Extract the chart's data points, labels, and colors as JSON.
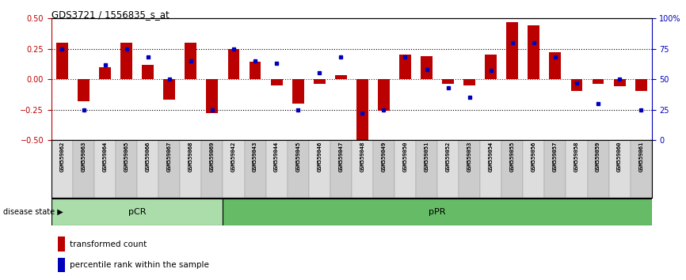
{
  "title": "GDS3721 / 1556835_s_at",
  "samples": [
    "GSM559062",
    "GSM559063",
    "GSM559064",
    "GSM559065",
    "GSM559066",
    "GSM559067",
    "GSM559068",
    "GSM559069",
    "GSM559042",
    "GSM559043",
    "GSM559044",
    "GSM559045",
    "GSM559046",
    "GSM559047",
    "GSM559048",
    "GSM559049",
    "GSM559050",
    "GSM559051",
    "GSM559052",
    "GSM559053",
    "GSM559054",
    "GSM559055",
    "GSM559056",
    "GSM559057",
    "GSM559058",
    "GSM559059",
    "GSM559060",
    "GSM559061"
  ],
  "red_values": [
    0.3,
    -0.18,
    0.1,
    0.3,
    0.12,
    -0.17,
    0.3,
    -0.28,
    0.25,
    0.14,
    -0.05,
    -0.2,
    -0.04,
    0.03,
    -0.5,
    -0.26,
    0.2,
    0.19,
    -0.04,
    -0.05,
    0.2,
    0.47,
    0.44,
    0.22,
    -0.1,
    -0.04,
    -0.06,
    -0.1
  ],
  "blue_percentiles": [
    75,
    25,
    62,
    75,
    68,
    50,
    65,
    25,
    75,
    65,
    63,
    25,
    55,
    68,
    22,
    25,
    68,
    58,
    43,
    35,
    57,
    80,
    80,
    68,
    47,
    30,
    50,
    25
  ],
  "pCR_count": 8,
  "pPR_count": 20,
  "ylim": [
    -0.5,
    0.5
  ],
  "yticks_left": [
    -0.5,
    -0.25,
    0.0,
    0.25,
    0.5
  ],
  "yticks_right": [
    0,
    25,
    50,
    75,
    100
  ],
  "red_color": "#BB0000",
  "blue_color": "#0000BB",
  "pCR_color": "#AADDAA",
  "pPR_color": "#66BB66",
  "bg_color": "#FFFFFF",
  "bar_width": 0.55,
  "legend_red": "transformed count",
  "legend_blue": "percentile rank within the sample",
  "pCR_label": "pCR",
  "pPR_label": "pPR",
  "disease_state_label": "disease state"
}
